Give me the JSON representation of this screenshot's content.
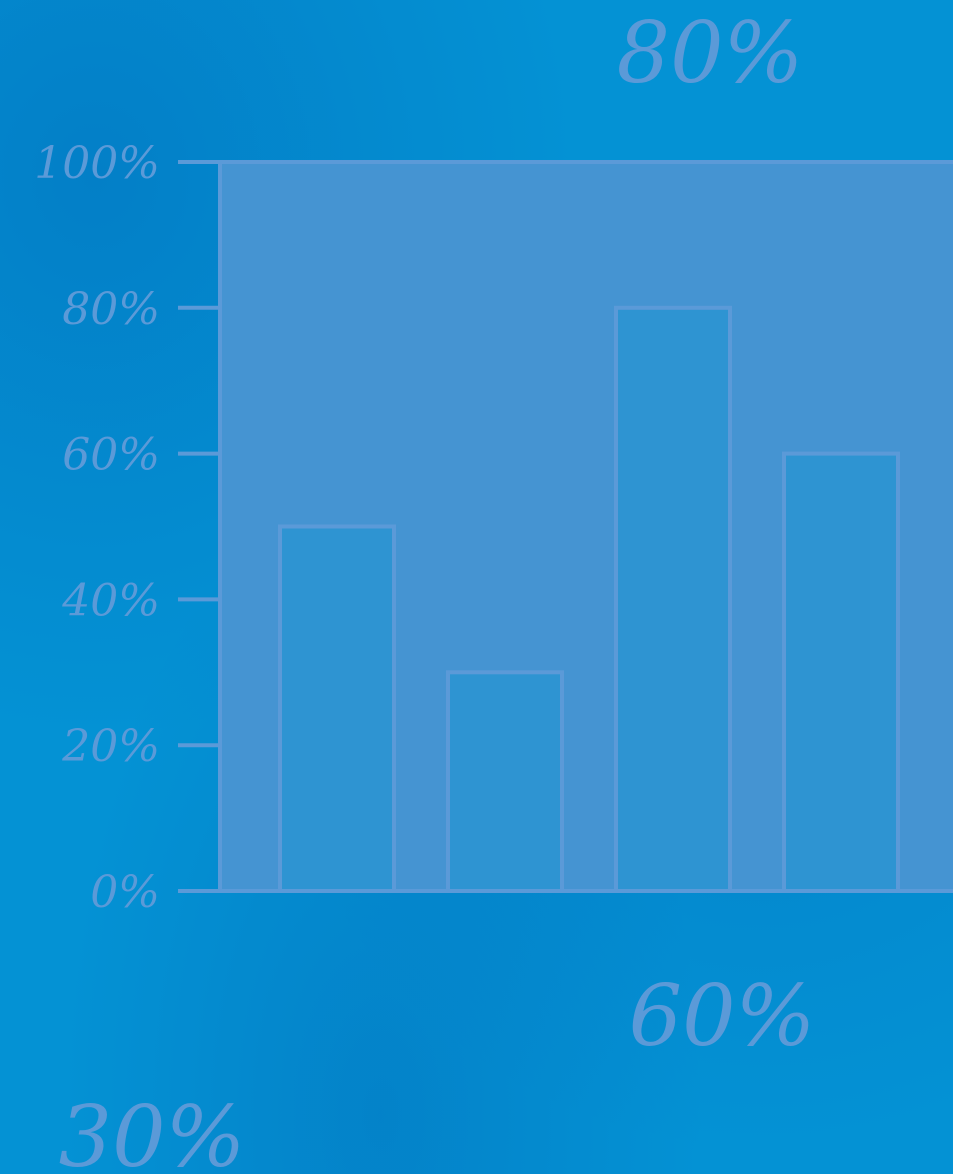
{
  "chart_data": {
    "type": "bar",
    "categories": [
      "",
      "",
      "",
      ""
    ],
    "values": [
      50,
      30,
      80,
      60
    ],
    "ylim": [
      0,
      100
    ],
    "yticks": [
      "0%",
      "20%",
      "40%",
      "60%",
      "80%",
      "100%"
    ],
    "grid": false,
    "title": "",
    "xlabel": "",
    "ylabel": ""
  },
  "decorations": {
    "labels": [
      {
        "name": "float-label-top",
        "text": "80%"
      },
      {
        "name": "float-label-middle",
        "text": "60%"
      },
      {
        "name": "float-label-bottom",
        "text": "30%"
      }
    ]
  },
  "colors": {
    "background": "#0492d4",
    "plot_area": "#4594d2",
    "bar_fill": "#2e94d2",
    "line": "#5b9ad8"
  }
}
